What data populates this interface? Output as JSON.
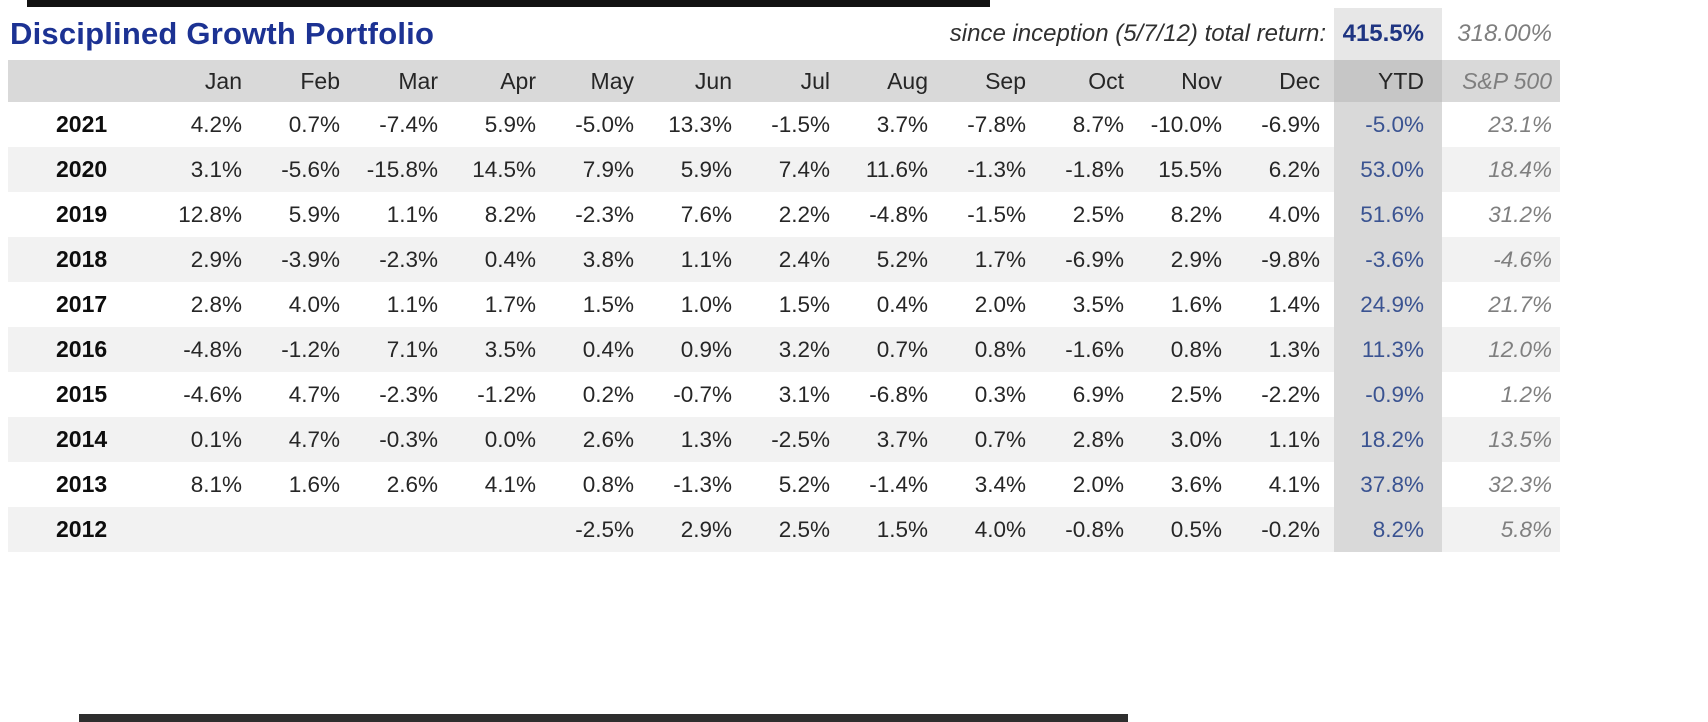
{
  "colors": {
    "title_blue": "#1c3293",
    "total_blue": "#1f3582",
    "ytd_blue": "#3a5391",
    "sp_gray": "#7f7f7f",
    "header_bg": "#d9d9d9",
    "stripe_bg": "#f2f2f2",
    "ytd_col_bg": "#d9d9d9",
    "ytd_hdr_bg": "#c6c6c6",
    "ytd_title_bg": "#e7e7e7"
  },
  "chart_data": {
    "type": "table",
    "title": "Disciplined Growth Portfolio",
    "header_note": {
      "label": "since inception (5/7/12) total return:",
      "total_return": "415.5%",
      "sp500_total": "318.00%"
    },
    "month_columns": [
      "Jan",
      "Feb",
      "Mar",
      "Apr",
      "May",
      "Jun",
      "Jul",
      "Aug",
      "Sep",
      "Oct",
      "Nov",
      "Dec"
    ],
    "ytd_label": "YTD",
    "sp500_label": "S&P 500",
    "rows": [
      {
        "year": "2021",
        "months": [
          "4.2%",
          "0.7%",
          "-7.4%",
          "5.9%",
          "-5.0%",
          "13.3%",
          "-1.5%",
          "3.7%",
          "-7.8%",
          "8.7%",
          "-10.0%",
          "-6.9%"
        ],
        "ytd": "-5.0%",
        "sp500": "23.1%"
      },
      {
        "year": "2020",
        "months": [
          "3.1%",
          "-5.6%",
          "-15.8%",
          "14.5%",
          "7.9%",
          "5.9%",
          "7.4%",
          "11.6%",
          "-1.3%",
          "-1.8%",
          "15.5%",
          "6.2%"
        ],
        "ytd": "53.0%",
        "sp500": "18.4%"
      },
      {
        "year": "2019",
        "months": [
          "12.8%",
          "5.9%",
          "1.1%",
          "8.2%",
          "-2.3%",
          "7.6%",
          "2.2%",
          "-4.8%",
          "-1.5%",
          "2.5%",
          "8.2%",
          "4.0%"
        ],
        "ytd": "51.6%",
        "sp500": "31.2%"
      },
      {
        "year": "2018",
        "months": [
          "2.9%",
          "-3.9%",
          "-2.3%",
          "0.4%",
          "3.8%",
          "1.1%",
          "2.4%",
          "5.2%",
          "1.7%",
          "-6.9%",
          "2.9%",
          "-9.8%"
        ],
        "ytd": "-3.6%",
        "sp500": "-4.6%"
      },
      {
        "year": "2017",
        "months": [
          "2.8%",
          "4.0%",
          "1.1%",
          "1.7%",
          "1.5%",
          "1.0%",
          "1.5%",
          "0.4%",
          "2.0%",
          "3.5%",
          "1.6%",
          "1.4%"
        ],
        "ytd": "24.9%",
        "sp500": "21.7%"
      },
      {
        "year": "2016",
        "months": [
          "-4.8%",
          "-1.2%",
          "7.1%",
          "3.5%",
          "0.4%",
          "0.9%",
          "3.2%",
          "0.7%",
          "0.8%",
          "-1.6%",
          "0.8%",
          "1.3%"
        ],
        "ytd": "11.3%",
        "sp500": "12.0%"
      },
      {
        "year": "2015",
        "months": [
          "-4.6%",
          "4.7%",
          "-2.3%",
          "-1.2%",
          "0.2%",
          "-0.7%",
          "3.1%",
          "-6.8%",
          "0.3%",
          "6.9%",
          "2.5%",
          "-2.2%"
        ],
        "ytd": "-0.9%",
        "sp500": "1.2%"
      },
      {
        "year": "2014",
        "months": [
          "0.1%",
          "4.7%",
          "-0.3%",
          "0.0%",
          "2.6%",
          "1.3%",
          "-2.5%",
          "3.7%",
          "0.7%",
          "2.8%",
          "3.0%",
          "1.1%"
        ],
        "ytd": "18.2%",
        "sp500": "13.5%"
      },
      {
        "year": "2013",
        "months": [
          "8.1%",
          "1.6%",
          "2.6%",
          "4.1%",
          "0.8%",
          "-1.3%",
          "5.2%",
          "-1.4%",
          "3.4%",
          "2.0%",
          "3.6%",
          "4.1%"
        ],
        "ytd": "37.8%",
        "sp500": "32.3%"
      },
      {
        "year": "2012",
        "months": [
          "",
          "",
          "",
          "",
          "-2.5%",
          "2.9%",
          "2.5%",
          "1.5%",
          "4.0%",
          "-0.8%",
          "0.5%",
          "-0.2%"
        ],
        "ytd": "8.2%",
        "sp500": "5.8%"
      }
    ]
  }
}
